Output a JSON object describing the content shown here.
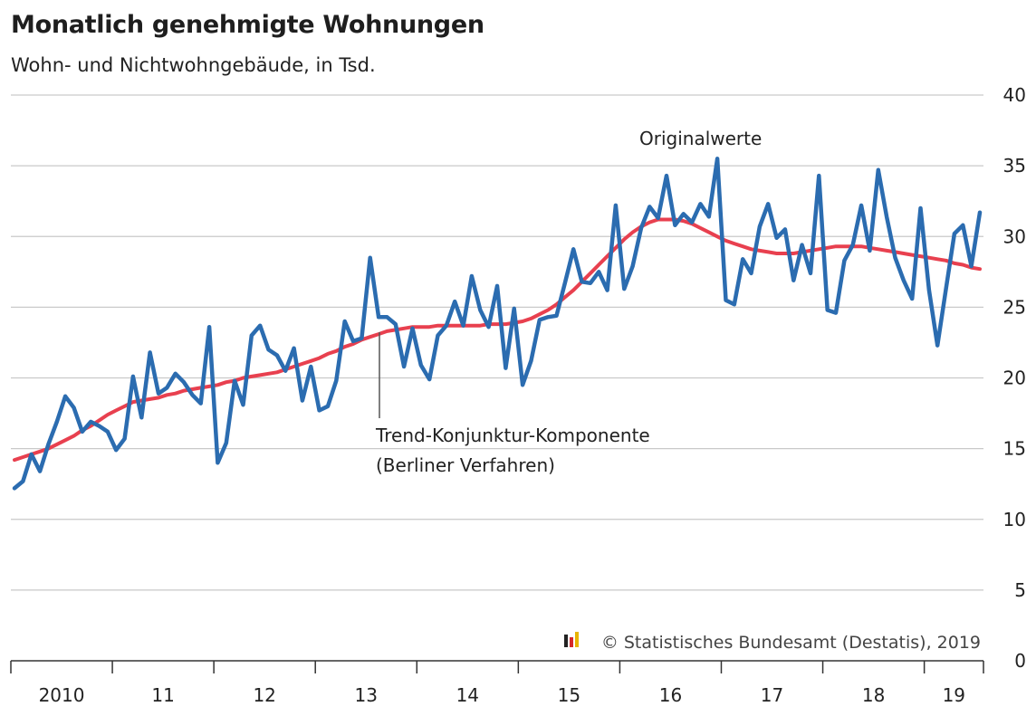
{
  "chart_data": {
    "type": "line",
    "title": "Monatlich genehmigte Wohnungen",
    "subtitle": "Wohn- und Nichtwohngebäude, in Tsd.",
    "ylim": [
      0,
      40
    ],
    "yticks": [
      "0",
      "5",
      "10",
      "15",
      "20",
      "25",
      "30",
      "35",
      "40"
    ],
    "grid": true,
    "x_start": "2010-01",
    "x_end": "2019-08",
    "x_year_labels": [
      "2010",
      "11",
      "12",
      "13",
      "14",
      "15",
      "16",
      "17",
      "18",
      "19"
    ],
    "annotations": {
      "original": "Originalwerte",
      "trend_line1": "Trend-Konjunktur-Komponente",
      "trend_line2": "(Berliner Verfahren)"
    },
    "source": "© Statistisches Bundesamt (Destatis), 2019",
    "series": [
      {
        "name": "Originalwerte",
        "color": "#2b6cb0",
        "values": [
          12.2,
          12.7,
          14.6,
          13.4,
          15.3,
          16.9,
          18.7,
          17.9,
          16.2,
          16.9,
          16.6,
          16.2,
          14.9,
          15.7,
          20.1,
          17.2,
          21.8,
          18.9,
          19.3,
          20.3,
          19.7,
          18.8,
          18.2,
          23.6,
          14.0,
          15.4,
          19.8,
          18.1,
          23.0,
          23.7,
          22.0,
          21.6,
          20.5,
          22.1,
          18.4,
          20.8,
          17.7,
          18.0,
          19.8,
          24.0,
          22.6,
          22.8,
          28.5,
          24.3,
          24.3,
          23.8,
          20.8,
          23.5,
          20.9,
          19.9,
          23.0,
          23.7,
          25.4,
          23.7,
          27.2,
          24.8,
          23.6,
          26.5,
          20.7,
          24.9,
          19.5,
          21.2,
          24.1,
          24.3,
          24.4,
          26.7,
          29.1,
          26.8,
          26.7,
          27.5,
          26.2,
          32.2,
          26.3,
          27.9,
          30.6,
          32.1,
          31.3,
          34.3,
          30.8,
          31.6,
          31.0,
          32.3,
          31.4,
          35.5,
          25.5,
          25.2,
          28.4,
          27.4,
          30.7,
          32.3,
          29.9,
          30.5,
          26.9,
          29.4,
          27.4,
          34.3,
          24.8,
          24.6,
          28.3,
          29.4,
          32.2,
          29.0,
          34.7,
          31.4,
          28.5,
          26.9,
          25.6,
          32.0,
          26.2,
          22.3,
          26.3,
          30.2,
          30.8,
          27.9,
          31.7
        ]
      },
      {
        "name": "Trend-Konjunktur-Komponente (Berliner Verfahren)",
        "color": "#e8404f",
        "values": [
          14.2,
          14.4,
          14.6,
          14.8,
          15.0,
          15.3,
          15.6,
          15.9,
          16.3,
          16.6,
          17.0,
          17.4,
          17.7,
          18.0,
          18.3,
          18.4,
          18.5,
          18.6,
          18.8,
          18.9,
          19.1,
          19.2,
          19.3,
          19.4,
          19.5,
          19.7,
          19.8,
          20.0,
          20.1,
          20.2,
          20.3,
          20.4,
          20.6,
          20.8,
          21.0,
          21.2,
          21.4,
          21.7,
          21.9,
          22.2,
          22.4,
          22.7,
          22.9,
          23.1,
          23.3,
          23.4,
          23.5,
          23.6,
          23.6,
          23.6,
          23.7,
          23.7,
          23.7,
          23.7,
          23.7,
          23.7,
          23.8,
          23.8,
          23.8,
          23.9,
          24.0,
          24.2,
          24.5,
          24.8,
          25.2,
          25.7,
          26.2,
          26.8,
          27.4,
          28.0,
          28.6,
          29.2,
          29.8,
          30.3,
          30.7,
          31.0,
          31.2,
          31.2,
          31.2,
          31.1,
          30.9,
          30.6,
          30.3,
          30.0,
          29.7,
          29.5,
          29.3,
          29.1,
          29.0,
          28.9,
          28.8,
          28.8,
          28.8,
          28.9,
          29.0,
          29.1,
          29.2,
          29.3,
          29.3,
          29.3,
          29.3,
          29.2,
          29.1,
          29.0,
          28.9,
          28.8,
          28.7,
          28.6,
          28.5,
          28.4,
          28.3,
          28.1,
          28.0,
          27.8,
          27.7
        ]
      }
    ]
  }
}
